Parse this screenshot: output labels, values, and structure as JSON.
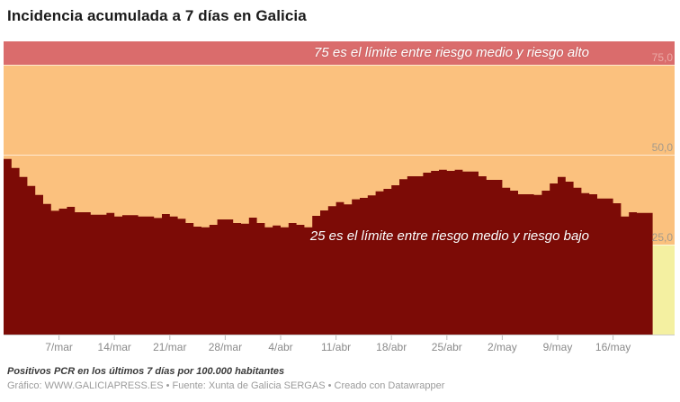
{
  "header": {
    "title": "Incidencia acumulada a 7 días en Galicia"
  },
  "chart_data": {
    "type": "area",
    "title": "Incidencia acumulada a 7 días en Galicia",
    "xlabel": "",
    "ylabel": "Positivos PCR en los últimos 7 días por 100.000 habitantes",
    "ylim": [
      0,
      81.5
    ],
    "grid": true,
    "legend": "none",
    "area_color": "#7c0b06",
    "axis_line_color": "#cccccc",
    "x": [
      "28/feb",
      "1/mar",
      "2/mar",
      "3/mar",
      "4/mar",
      "5/mar",
      "6/mar",
      "7/mar",
      "8/mar",
      "9/mar",
      "10/mar",
      "11/mar",
      "12/mar",
      "13/mar",
      "14/mar",
      "15/mar",
      "16/mar",
      "17/mar",
      "18/mar",
      "19/mar",
      "20/mar",
      "21/mar",
      "22/mar",
      "23/mar",
      "24/mar",
      "25/mar",
      "26/mar",
      "27/mar",
      "28/mar",
      "29/mar",
      "30/mar",
      "31/mar",
      "1/abr",
      "2/abr",
      "3/abr",
      "4/abr",
      "5/abr",
      "6/abr",
      "7/abr",
      "8/abr",
      "9/abr",
      "10/abr",
      "11/abr",
      "12/abr",
      "13/abr",
      "14/abr",
      "15/abr",
      "16/abr",
      "17/abr",
      "18/abr",
      "19/abr",
      "20/abr",
      "21/abr",
      "22/abr",
      "23/abr",
      "24/abr",
      "25/abr",
      "26/abr",
      "27/abr",
      "28/abr",
      "29/abr",
      "30/abr",
      "1/may",
      "2/may",
      "3/may",
      "4/may",
      "5/may",
      "6/may",
      "7/may",
      "8/may",
      "9/may",
      "10/may",
      "11/may",
      "12/may",
      "13/may",
      "14/may",
      "15/may",
      "16/may",
      "17/may",
      "18/may",
      "19/may",
      "20/may"
    ],
    "values": [
      48.8,
      46.3,
      43.8,
      41.3,
      38.8,
      36.3,
      34.4,
      35.0,
      35.5,
      34.0,
      34.0,
      33.3,
      33.3,
      33.8,
      32.8,
      33.2,
      33.2,
      32.8,
      32.8,
      32.4,
      33.5,
      32.8,
      32.2,
      31.0,
      30.0,
      29.8,
      30.5,
      32.0,
      32.0,
      31.0,
      30.8,
      32.5,
      31.0,
      29.8,
      30.3,
      29.8,
      31.0,
      30.5,
      29.8,
      33.0,
      34.5,
      35.7,
      36.8,
      36.2,
      37.6,
      38.0,
      38.7,
      39.8,
      40.5,
      41.5,
      43.2,
      44.0,
      44.0,
      45.0,
      45.5,
      45.8,
      45.5,
      45.8,
      45.3,
      45.3,
      44.0,
      43.0,
      43.0,
      40.8,
      40.0,
      39.0,
      39.0,
      38.8,
      40.0,
      42.0,
      43.8,
      42.5,
      40.8,
      39.3,
      39.0,
      37.8,
      37.8,
      36.5,
      32.8,
      34.0,
      33.8,
      33.8
    ],
    "x_ticks": [
      {
        "label": "7/mar",
        "index": 7
      },
      {
        "label": "14/mar",
        "index": 14
      },
      {
        "label": "21/mar",
        "index": 21
      },
      {
        "label": "28/mar",
        "index": 28
      },
      {
        "label": "4/abr",
        "index": 35
      },
      {
        "label": "11/abr",
        "index": 42
      },
      {
        "label": "18/abr",
        "index": 49
      },
      {
        "label": "25/abr",
        "index": 56
      },
      {
        "label": "2/may",
        "index": 63
      },
      {
        "label": "9/may",
        "index": 70
      },
      {
        "label": "16/may",
        "index": 77
      }
    ],
    "y_ticks": [
      {
        "value": 25,
        "label": "25,0",
        "label_color": "#a39a8c"
      },
      {
        "value": 50,
        "label": "50,0",
        "label_color": "#a39a8c"
      },
      {
        "value": 75,
        "label": "75,0",
        "label_color": "#eba9a6"
      }
    ],
    "bands": [
      {
        "name": "riesgo-alto",
        "from": 75,
        "to": 81.5,
        "color": "#da6c6c"
      },
      {
        "name": "riesgo-medio",
        "from": 25,
        "to": 75,
        "color": "#fbc17e"
      },
      {
        "name": "riesgo-bajo",
        "from": 0,
        "to": 25,
        "color": "#f4f0a1"
      }
    ],
    "annotations": [
      {
        "text": "75 es el límite entre riesgo medio y riesgo alto",
        "color": "#ffffff"
      },
      {
        "text": "25 es el límite entre riesgo medio y riesgo bajo",
        "color": "#ffffff"
      }
    ]
  },
  "footer": {
    "note": "Positivos PCR en los últimos 7 días por 100.000 habitantes",
    "byline": "Gráfico: WWW.GALICIAPRESS.ES • Fuente: Xunta de Galicia SERGAS • Creado con Datawrapper"
  }
}
